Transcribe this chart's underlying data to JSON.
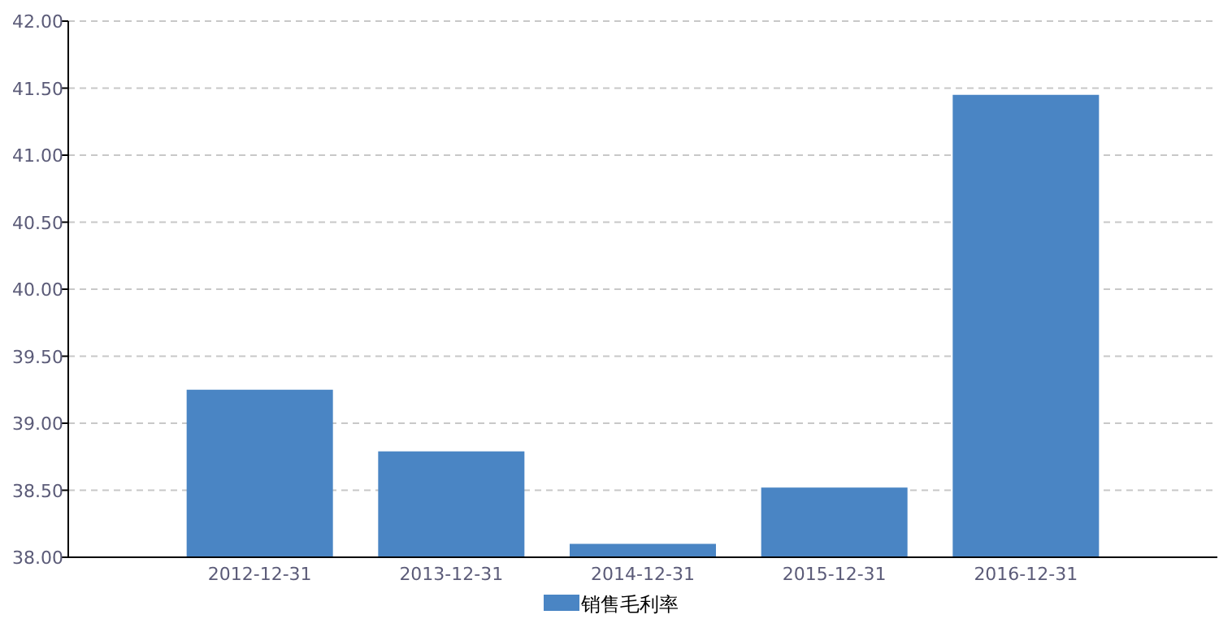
{
  "chart_data": {
    "type": "bar",
    "categories": [
      "2012-12-31",
      "2013-12-31",
      "2014-12-31",
      "2015-12-31",
      "2016-12-31"
    ],
    "series": [
      {
        "name": "销售毛利率",
        "color": "#4a85c4",
        "values": [
          39.25,
          38.79,
          38.1,
          38.52,
          41.45
        ]
      }
    ],
    "ylim": [
      38,
      42
    ],
    "yticks": [
      {
        "value": 38,
        "label": "38.00"
      },
      {
        "value": 38.5,
        "label": "38.50"
      },
      {
        "value": 39,
        "label": "39.00"
      },
      {
        "value": 39.5,
        "label": "39.50"
      },
      {
        "value": 40,
        "label": "40.00"
      },
      {
        "value": 40.5,
        "label": "40.50"
      },
      {
        "value": 41,
        "label": "41.00"
      },
      {
        "value": 41.5,
        "label": "41.50"
      },
      {
        "value": 42,
        "label": "42.00"
      }
    ],
    "grid": "y",
    "legend": "bottom"
  }
}
